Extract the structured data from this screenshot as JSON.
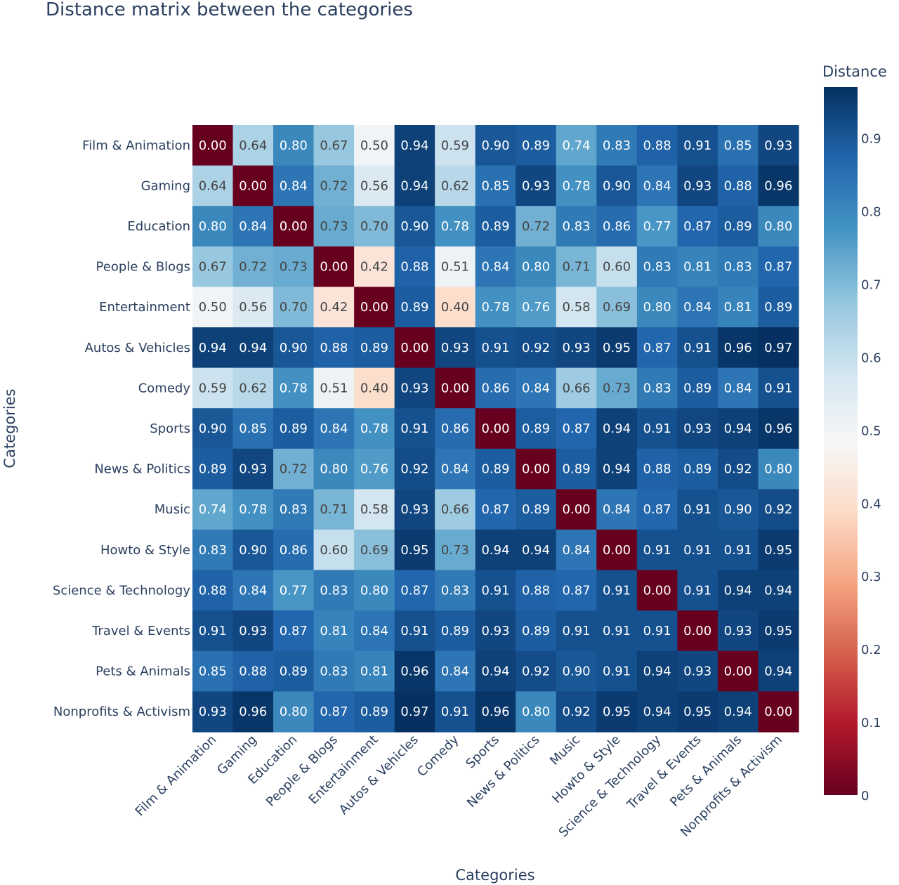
{
  "chart_data": {
    "type": "heatmap",
    "title": "Distance matrix between the categories",
    "xlabel": "Categories",
    "ylabel": "Categories",
    "categories": [
      "Film & Animation",
      "Gaming",
      "Education",
      "People & Blogs",
      "Entertainment",
      "Autos & Vehicles",
      "Comedy",
      "Sports",
      "News & Politics",
      "Music",
      "Howto & Style",
      "Science & Technology",
      "Travel & Events",
      "Pets & Animals",
      "Nonprofits & Activism"
    ],
    "values": [
      [
        0.0,
        0.64,
        0.8,
        0.67,
        0.5,
        0.94,
        0.59,
        0.9,
        0.89,
        0.74,
        0.83,
        0.88,
        0.91,
        0.85,
        0.93
      ],
      [
        0.64,
        0.0,
        0.84,
        0.72,
        0.56,
        0.94,
        0.62,
        0.85,
        0.93,
        0.78,
        0.9,
        0.84,
        0.93,
        0.88,
        0.96
      ],
      [
        0.8,
        0.84,
        0.0,
        0.73,
        0.7,
        0.9,
        0.78,
        0.89,
        0.72,
        0.83,
        0.86,
        0.77,
        0.87,
        0.89,
        0.8
      ],
      [
        0.67,
        0.72,
        0.73,
        0.0,
        0.42,
        0.88,
        0.51,
        0.84,
        0.8,
        0.71,
        0.6,
        0.83,
        0.81,
        0.83,
        0.87
      ],
      [
        0.5,
        0.56,
        0.7,
        0.42,
        0.0,
        0.89,
        0.4,
        0.78,
        0.76,
        0.58,
        0.69,
        0.8,
        0.84,
        0.81,
        0.89
      ],
      [
        0.94,
        0.94,
        0.9,
        0.88,
        0.89,
        0.0,
        0.93,
        0.91,
        0.92,
        0.93,
        0.95,
        0.87,
        0.91,
        0.96,
        0.97
      ],
      [
        0.59,
        0.62,
        0.78,
        0.51,
        0.4,
        0.93,
        0.0,
        0.86,
        0.84,
        0.66,
        0.73,
        0.83,
        0.89,
        0.84,
        0.91
      ],
      [
        0.9,
        0.85,
        0.89,
        0.84,
        0.78,
        0.91,
        0.86,
        0.0,
        0.89,
        0.87,
        0.94,
        0.91,
        0.93,
        0.94,
        0.96
      ],
      [
        0.89,
        0.93,
        0.72,
        0.8,
        0.76,
        0.92,
        0.84,
        0.89,
        0.0,
        0.89,
        0.94,
        0.88,
        0.89,
        0.92,
        0.8
      ],
      [
        0.74,
        0.78,
        0.83,
        0.71,
        0.58,
        0.93,
        0.66,
        0.87,
        0.89,
        0.0,
        0.84,
        0.87,
        0.91,
        0.9,
        0.92
      ],
      [
        0.83,
        0.9,
        0.86,
        0.6,
        0.69,
        0.95,
        0.73,
        0.94,
        0.94,
        0.84,
        0.0,
        0.91,
        0.91,
        0.91,
        0.95
      ],
      [
        0.88,
        0.84,
        0.77,
        0.83,
        0.8,
        0.87,
        0.83,
        0.91,
        0.88,
        0.87,
        0.91,
        0.0,
        0.91,
        0.94,
        0.94
      ],
      [
        0.91,
        0.93,
        0.87,
        0.81,
        0.84,
        0.91,
        0.89,
        0.93,
        0.89,
        0.91,
        0.91,
        0.91,
        0.0,
        0.93,
        0.95
      ],
      [
        0.85,
        0.88,
        0.89,
        0.83,
        0.81,
        0.96,
        0.84,
        0.94,
        0.92,
        0.9,
        0.91,
        0.94,
        0.93,
        0.0,
        0.94
      ],
      [
        0.93,
        0.96,
        0.8,
        0.87,
        0.89,
        0.97,
        0.91,
        0.96,
        0.8,
        0.92,
        0.95,
        0.94,
        0.95,
        0.94,
        0.0
      ]
    ],
    "colorscale": "RdBu",
    "colorscale_colors": [
      "#67001f",
      "#b2182b",
      "#d6604d",
      "#f4a582",
      "#fddbc7",
      "#f7f7f7",
      "#d1e5f0",
      "#92c5de",
      "#4393c3",
      "#2166ac",
      "#053061"
    ],
    "zmin": 0,
    "zmax": 0.97,
    "colorbar": {
      "title": "Distance",
      "tickvals": [
        0,
        0.1,
        0.2,
        0.3,
        0.4,
        0.5,
        0.6,
        0.7,
        0.8,
        0.9
      ],
      "ticktext": [
        "0",
        "0.1",
        "0.2",
        "0.3",
        "0.4",
        "0.5",
        "0.6",
        "0.7",
        "0.8",
        "0.9"
      ]
    },
    "grid": false,
    "legend": "right"
  }
}
